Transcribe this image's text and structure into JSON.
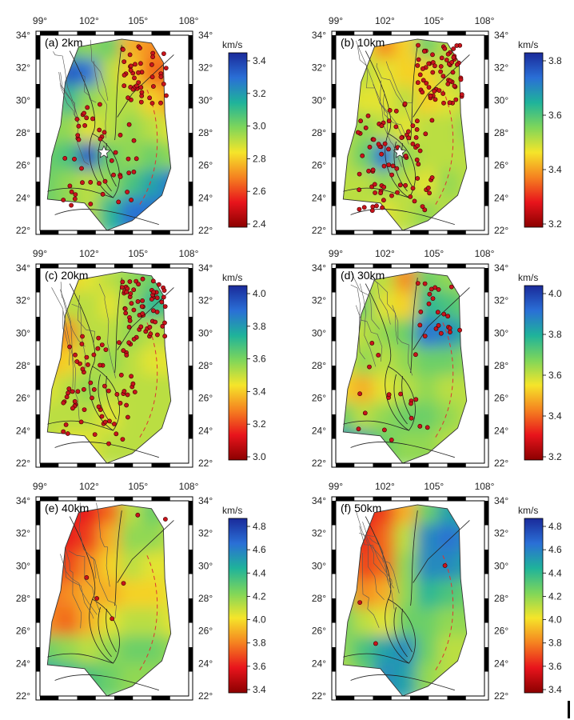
{
  "figure": {
    "lon_ticks": [
      "99°",
      "102°",
      "105°",
      "108°"
    ],
    "lat_ticks": [
      "34°",
      "32°",
      "30°",
      "28°",
      "26°",
      "24°",
      "22°"
    ],
    "colorbar_unit": "km/s",
    "colormap": [
      "#8b0000",
      "#e8141c",
      "#f58220",
      "#f5e52a",
      "#7fd65a",
      "#1fb39a",
      "#2a6fd6",
      "#1a2a9a"
    ]
  },
  "panels": [
    {
      "label": "(a) 2km",
      "cbar_ticks": [
        "3.4",
        "3.2",
        "3.0",
        "2.8",
        "2.6",
        "2.4"
      ],
      "has_star": true,
      "dot_count": 90,
      "vel": [
        [
          0.45,
          0.6,
          0.55,
          0.6,
          0.35,
          0.3,
          0.3
        ],
        [
          0.55,
          0.9,
          0.85,
          0.5,
          0.4,
          0.25,
          0.25
        ],
        [
          0.5,
          0.7,
          0.55,
          0.5,
          0.5,
          0.4,
          0.3
        ],
        [
          0.55,
          0.55,
          0.45,
          0.5,
          0.55,
          0.5,
          0.45
        ],
        [
          0.6,
          0.65,
          0.9,
          0.6,
          0.55,
          0.6,
          0.55
        ],
        [
          0.6,
          0.55,
          0.5,
          0.55,
          0.65,
          0.75,
          0.85
        ],
        [
          0.6,
          0.55,
          0.5,
          0.7,
          0.85,
          0.85,
          0.85
        ]
      ]
    },
    {
      "label": "(b) 10km",
      "cbar_ticks": [
        "3.8",
        "3.6",
        "3.4",
        "3.2"
      ],
      "has_star": true,
      "dot_count": 150,
      "vel": [
        [
          0.4,
          0.45,
          0.3,
          0.4,
          0.6,
          0.5,
          0.45
        ],
        [
          0.45,
          0.5,
          0.45,
          0.4,
          0.4,
          0.5,
          0.5
        ],
        [
          0.5,
          0.45,
          0.45,
          0.5,
          0.4,
          0.45,
          0.5
        ],
        [
          0.5,
          0.55,
          0.5,
          0.45,
          0.5,
          0.5,
          0.55
        ],
        [
          0.5,
          0.6,
          0.85,
          0.55,
          0.5,
          0.5,
          0.5
        ],
        [
          0.5,
          0.5,
          0.55,
          0.5,
          0.45,
          0.55,
          0.5
        ],
        [
          0.5,
          0.5,
          0.45,
          0.5,
          0.55,
          0.5,
          0.5
        ]
      ]
    },
    {
      "label": "(c) 20km",
      "cbar_ticks": [
        "4.0",
        "3.8",
        "3.6",
        "3.4",
        "3.2",
        "3.0"
      ],
      "has_star": false,
      "dot_count": 130,
      "vel": [
        [
          0.45,
          0.4,
          0.45,
          0.5,
          0.55,
          0.6,
          0.6
        ],
        [
          0.45,
          0.5,
          0.5,
          0.45,
          0.55,
          0.7,
          0.65
        ],
        [
          0.35,
          0.3,
          0.5,
          0.5,
          0.55,
          0.5,
          0.5
        ],
        [
          0.35,
          0.4,
          0.5,
          0.55,
          0.5,
          0.45,
          0.45
        ],
        [
          0.45,
          0.5,
          0.55,
          0.5,
          0.5,
          0.5,
          0.5
        ],
        [
          0.5,
          0.5,
          0.5,
          0.45,
          0.5,
          0.5,
          0.5
        ],
        [
          0.5,
          0.45,
          0.45,
          0.5,
          0.5,
          0.5,
          0.5
        ]
      ]
    },
    {
      "label": "(d) 30km",
      "cbar_ticks": [
        "4.0",
        "3.8",
        "3.6",
        "3.4",
        "3.2"
      ],
      "has_star": false,
      "dot_count": 40,
      "vel": [
        [
          0.45,
          0.5,
          0.5,
          0.3,
          0.6,
          0.55,
          0.5
        ],
        [
          0.55,
          0.6,
          0.45,
          0.4,
          0.7,
          0.65,
          0.6
        ],
        [
          0.45,
          0.5,
          0.55,
          0.6,
          0.85,
          0.8,
          0.7
        ],
        [
          0.45,
          0.55,
          0.5,
          0.55,
          0.6,
          0.6,
          0.55
        ],
        [
          0.4,
          0.35,
          0.45,
          0.5,
          0.55,
          0.5,
          0.5
        ],
        [
          0.6,
          0.5,
          0.55,
          0.6,
          0.6,
          0.55,
          0.5
        ],
        [
          0.8,
          0.75,
          0.6,
          0.55,
          0.55,
          0.5,
          0.5
        ]
      ]
    },
    {
      "label": "(e) 40km",
      "cbar_ticks": [
        "4.8",
        "4.6",
        "4.4",
        "4.2",
        "4.0",
        "3.8",
        "3.6",
        "3.4"
      ],
      "has_star": false,
      "dot_count": 6,
      "vel": [
        [
          0.2,
          0.15,
          0.15,
          0.25,
          0.5,
          0.6,
          0.55
        ],
        [
          0.2,
          0.15,
          0.2,
          0.35,
          0.55,
          0.55,
          0.5
        ],
        [
          0.25,
          0.2,
          0.3,
          0.4,
          0.5,
          0.45,
          0.45
        ],
        [
          0.25,
          0.3,
          0.35,
          0.35,
          0.4,
          0.4,
          0.45
        ],
        [
          0.3,
          0.25,
          0.35,
          0.45,
          0.5,
          0.5,
          0.45
        ],
        [
          0.6,
          0.55,
          0.5,
          0.55,
          0.6,
          0.6,
          0.55
        ],
        [
          0.75,
          0.7,
          0.65,
          0.6,
          0.55,
          0.55,
          0.55
        ]
      ]
    },
    {
      "label": "(f) 50km",
      "cbar_ticks": [
        "4.8",
        "4.6",
        "4.4",
        "4.2",
        "4.0",
        "3.8",
        "3.6",
        "3.4"
      ],
      "has_star": false,
      "dot_count": 3,
      "vel": [
        [
          0.2,
          0.15,
          0.2,
          0.35,
          0.6,
          0.75,
          0.7
        ],
        [
          0.25,
          0.15,
          0.25,
          0.5,
          0.8,
          0.85,
          0.8
        ],
        [
          0.35,
          0.2,
          0.25,
          0.55,
          0.8,
          0.8,
          0.75
        ],
        [
          0.55,
          0.3,
          0.35,
          0.55,
          0.7,
          0.65,
          0.6
        ],
        [
          0.6,
          0.5,
          0.45,
          0.6,
          0.6,
          0.55,
          0.55
        ],
        [
          0.55,
          0.65,
          0.75,
          0.8,
          0.6,
          0.5,
          0.5
        ],
        [
          0.5,
          0.6,
          0.8,
          0.75,
          0.55,
          0.5,
          0.5
        ]
      ]
    }
  ]
}
